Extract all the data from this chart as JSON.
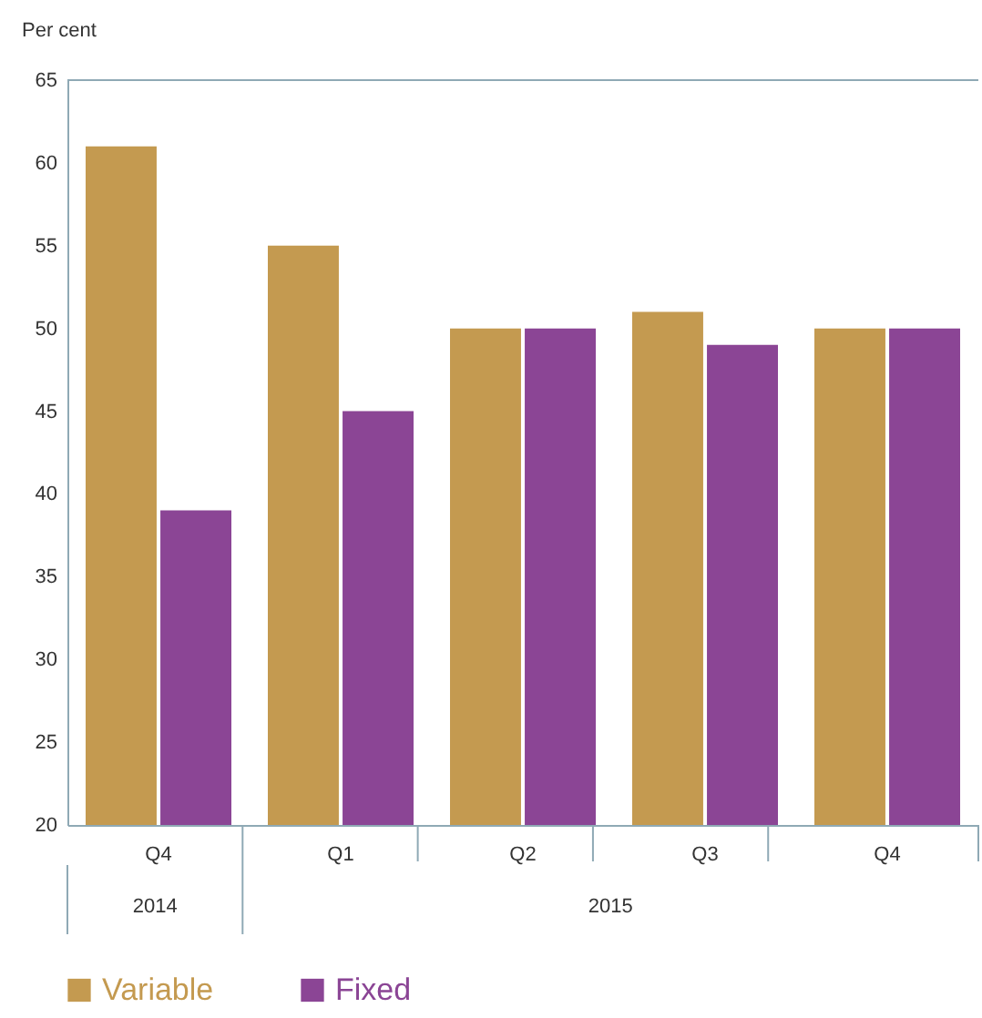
{
  "chart_data": {
    "type": "bar",
    "ylabel": "Per cent",
    "categories": [
      "Q4",
      "Q1",
      "Q2",
      "Q3",
      "Q4"
    ],
    "annotations": [
      "2014",
      "2015"
    ],
    "series": [
      {
        "name": "Variable",
        "color": "#c49a50",
        "values": [
          61,
          55,
          50,
          51,
          50
        ]
      },
      {
        "name": "Fixed",
        "color": "#8b4595",
        "values": [
          39,
          45,
          50,
          49,
          50
        ]
      }
    ],
    "ylim": [
      20,
      65
    ],
    "yticks": [
      20,
      25,
      30,
      35,
      40,
      45,
      50,
      55,
      60,
      65
    ],
    "grid": false,
    "legend": "bottom left"
  }
}
